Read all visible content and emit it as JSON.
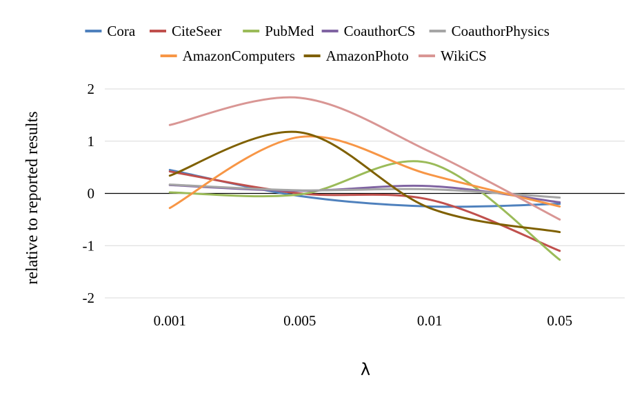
{
  "chart_data": {
    "type": "line",
    "title": "",
    "xlabel": "λ",
    "ylabel": "relative to reported results",
    "categories": [
      "0.001",
      "0.005",
      "0.01",
      "0.05"
    ],
    "ylim": [
      -2,
      2
    ],
    "yticks": [
      2,
      1,
      0,
      -1,
      -2
    ],
    "ytick_labels": [
      "2",
      "1",
      "0",
      "-1",
      "-2"
    ],
    "grid": true,
    "smooth": true,
    "legend_position": "top",
    "series": [
      {
        "name": "Cora",
        "color": "#4f81bd",
        "values": [
          0.45,
          -0.05,
          -0.25,
          -0.2
        ]
      },
      {
        "name": "CiteSeer",
        "color": "#c0504d",
        "values": [
          0.42,
          0.0,
          -0.12,
          -1.1
        ]
      },
      {
        "name": "PubMed",
        "color": "#9bbb59",
        "values": [
          0.02,
          -0.02,
          0.58,
          -1.27
        ]
      },
      {
        "name": "CoauthorCS",
        "color": "#8064a2",
        "values": [
          0.16,
          0.05,
          0.14,
          -0.17
        ]
      },
      {
        "name": "CoauthorPhysics",
        "color": "#a5a5a5",
        "values": [
          0.17,
          0.06,
          0.08,
          -0.08
        ]
      },
      {
        "name": "AmazonComputers",
        "color": "#f79646",
        "values": [
          -0.28,
          1.08,
          0.36,
          -0.25
        ]
      },
      {
        "name": "AmazonPhoto",
        "color": "#7f6000",
        "values": [
          0.34,
          1.17,
          -0.28,
          -0.74
        ]
      },
      {
        "name": "WikiCS",
        "color": "#d99694",
        "values": [
          1.31,
          1.83,
          0.8,
          -0.5
        ]
      }
    ]
  }
}
